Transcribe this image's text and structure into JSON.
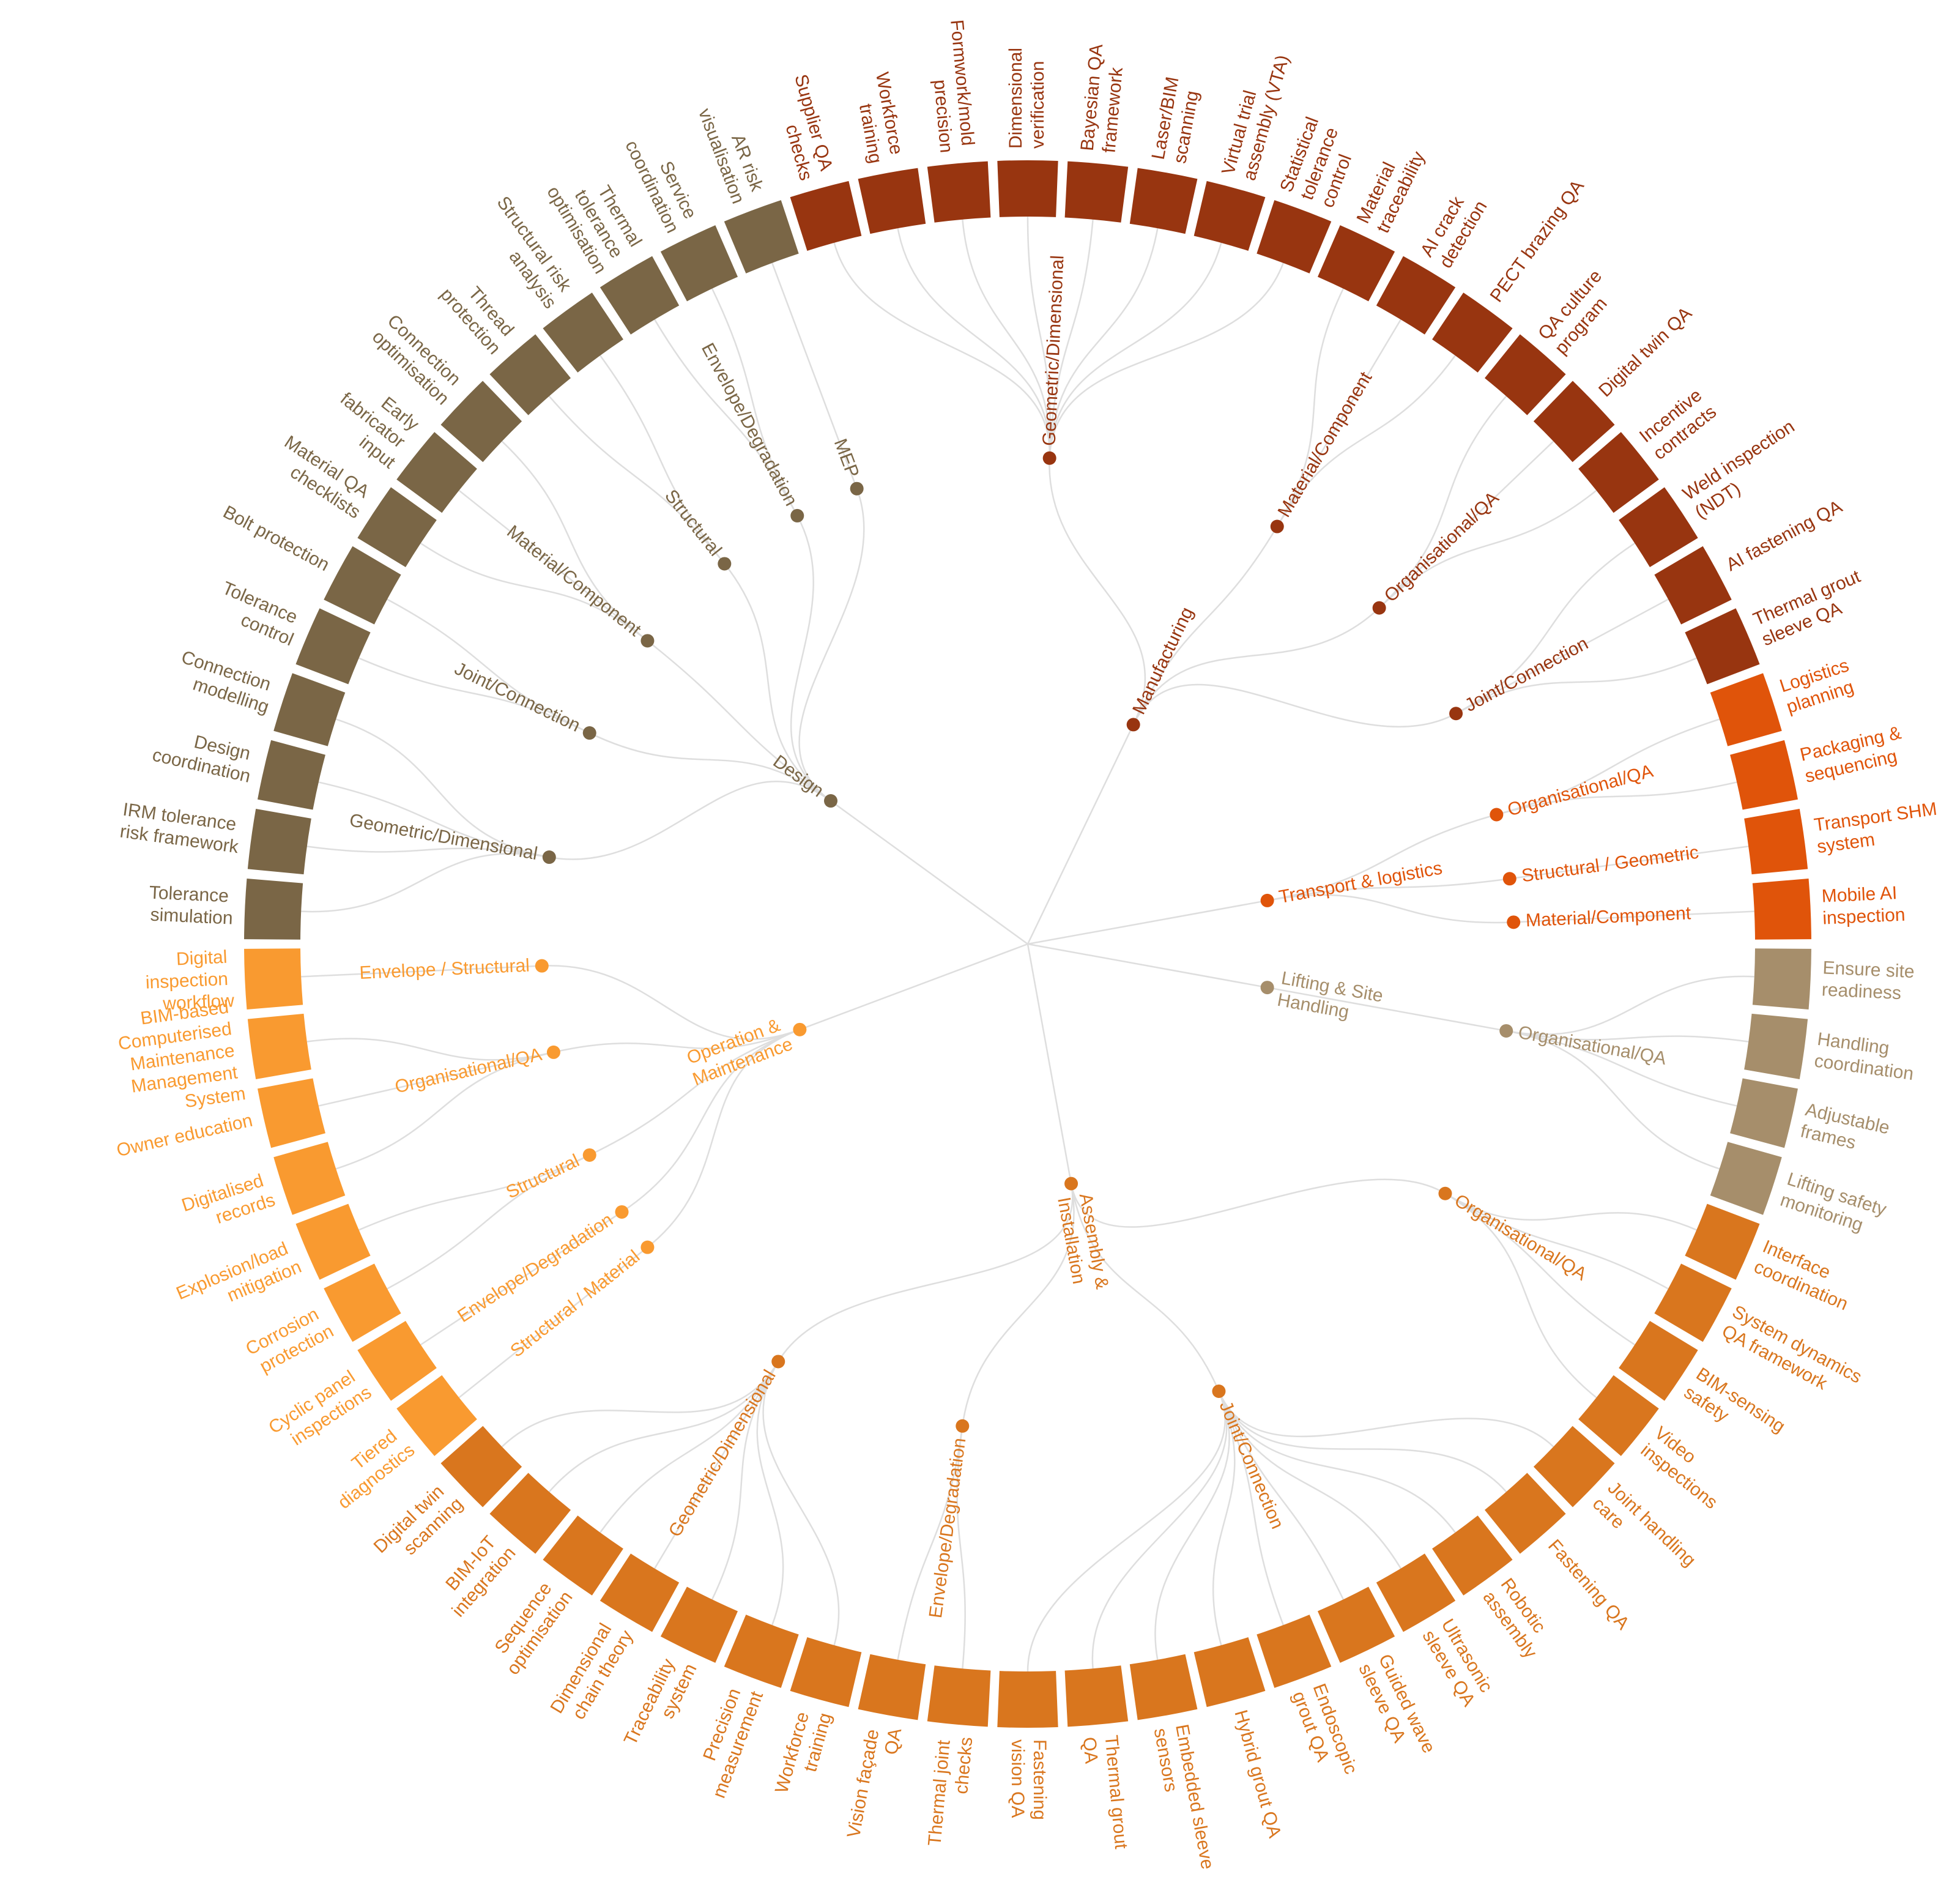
{
  "phases": [
    {
      "name": "Manufacturing",
      "color": "#983510",
      "groups": [
        {
          "name": "Geometric/Dimensional",
          "leaves": [
            "Supplier QA checks",
            "Workforce training",
            "Formwork/mold precision",
            "Dimensional verification",
            "Bayesian QA framework",
            "Laser/BIM scanning",
            "Virtual trial assembly (VTA)",
            "Statistical tolerance control"
          ]
        },
        {
          "name": "Material/Component",
          "leaves": [
            "Material traceability",
            "AI crack detection",
            "PECT brazing QA"
          ]
        },
        {
          "name": "Organisational/QA",
          "leaves": [
            "QA culture program",
            "Digital twin QA",
            "Incentive contracts"
          ]
        },
        {
          "name": "Joint/Connection",
          "leaves": [
            "Weld inspection (NDT)",
            "AI fastening QA",
            "Thermal grout sleeve QA"
          ]
        }
      ]
    },
    {
      "name": "Transport & logistics",
      "color": "#E0540A",
      "groups": [
        {
          "name": "Organisational/QA",
          "leaves": [
            "Logistics planning",
            "Packaging & sequencing"
          ]
        },
        {
          "name": "Structural / Geometric",
          "leaves": [
            "Transport SHM system"
          ]
        },
        {
          "name": "Material/Component",
          "leaves": [
            "Mobile AI inspection"
          ]
        }
      ]
    },
    {
      "name": "Lifting & Site Handling",
      "color": "#A68E6B",
      "groups": [
        {
          "name": "Organisational/QA",
          "leaves": [
            "Ensure site readiness",
            "Handling coordination",
            "Adjustable frames",
            "Lifting safety monitoring"
          ]
        }
      ]
    },
    {
      "name": "Assembly & Installation",
      "color": "#D9761E",
      "groups": [
        {
          "name": "Organisational/QA",
          "leaves": [
            "Interface coordination",
            "System dynamics QA framework",
            "BIM-sensing safety",
            "Video inspections"
          ]
        },
        {
          "name": "Joint/Connection",
          "leaves": [
            "Joint handling care",
            "Fastening QA",
            "Robotic assembly",
            "Ultrasonic sleeve QA",
            "Guided wave sleeve QA",
            "Endoscopic grout QA",
            "Hybrid grout QA",
            "Embedded sleeve sensors",
            "Thermal grout QA",
            "Fastening vision QA"
          ]
        },
        {
          "name": "Envelope/Degradation",
          "leaves": [
            "Thermal joint checks",
            "Vision façade QA"
          ]
        },
        {
          "name": "Geometric/Dimensional",
          "leaves": [
            "Workforce training",
            "Precision measurement",
            "Traceability system",
            "Dimensional chain theory",
            "Sequence optimisation",
            "BIM-IoT integration",
            "Digital twin scanning"
          ]
        }
      ]
    },
    {
      "name": "Operation & Maintenance",
      "color": "#F99A30",
      "groups": [
        {
          "name": "Structural / Material",
          "leaves": [
            "Tiered diagnostics"
          ]
        },
        {
          "name": "Envelope/Degradation",
          "leaves": [
            "Cyclic panel inspections"
          ]
        },
        {
          "name": "Structural",
          "leaves": [
            "Corrosion protection",
            "Explosion/load mitigation"
          ]
        },
        {
          "name": "Organisational/QA",
          "leaves": [
            "Digitalised records",
            "Owner education",
            "BIM-based Computerised Maintenance Management System"
          ]
        },
        {
          "name": "Envelope / Structural",
          "leaves": [
            "Digital inspection workflow"
          ]
        }
      ]
    },
    {
      "name": "Design",
      "color": "#7A6646",
      "groups": [
        {
          "name": "Geometric/Dimensional",
          "leaves": [
            "Tolerance simulation",
            "IRM tolerance risk framework",
            "Design coordination",
            "Connection modelling"
          ]
        },
        {
          "name": "Joint/Connection",
          "leaves": [
            "Tolerance control",
            "Bolt protection"
          ]
        },
        {
          "name": "Material/Component",
          "leaves": [
            "Material QA checklists",
            "Early fabricator input",
            "Connection optimisation"
          ]
        },
        {
          "name": "Structural",
          "leaves": [
            "Thread protection",
            "Structural risk analysis"
          ]
        },
        {
          "name": "Envelope/Degradation",
          "leaves": [
            "Thermal tolerance optimisation",
            "Service coordination"
          ]
        },
        {
          "name": "MEP",
          "leaves": [
            "AR risk visualisation"
          ]
        }
      ]
    }
  ]
}
